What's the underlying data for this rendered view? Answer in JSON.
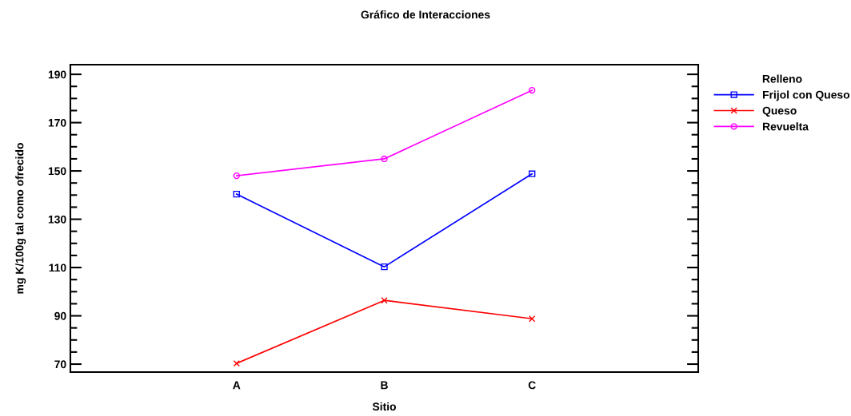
{
  "chart_data": {
    "type": "line",
    "title": "Gráfico de Interacciones",
    "xlabel": "Sitio",
    "ylabel": "mg K/100g tal como ofrecido",
    "legend_title": "Relleno",
    "categories": [
      "A",
      "B",
      "C"
    ],
    "series": [
      {
        "name": "Frijol con Queso",
        "color": "#0000ff",
        "marker": "square",
        "values": [
          140.4,
          110.3,
          148.8
        ]
      },
      {
        "name": "Queso",
        "color": "#ff0000",
        "marker": "cross",
        "values": [
          70.3,
          96.4,
          88.8
        ]
      },
      {
        "name": "Revuelta",
        "color": "#ff00ff",
        "marker": "circle",
        "values": [
          148,
          155,
          183.4
        ]
      }
    ],
    "ylim": [
      66.7,
      194
    ],
    "yticks": [
      70,
      90,
      110,
      130,
      150,
      170,
      190
    ],
    "grid": false,
    "legend": "right",
    "line_style": "solid"
  }
}
